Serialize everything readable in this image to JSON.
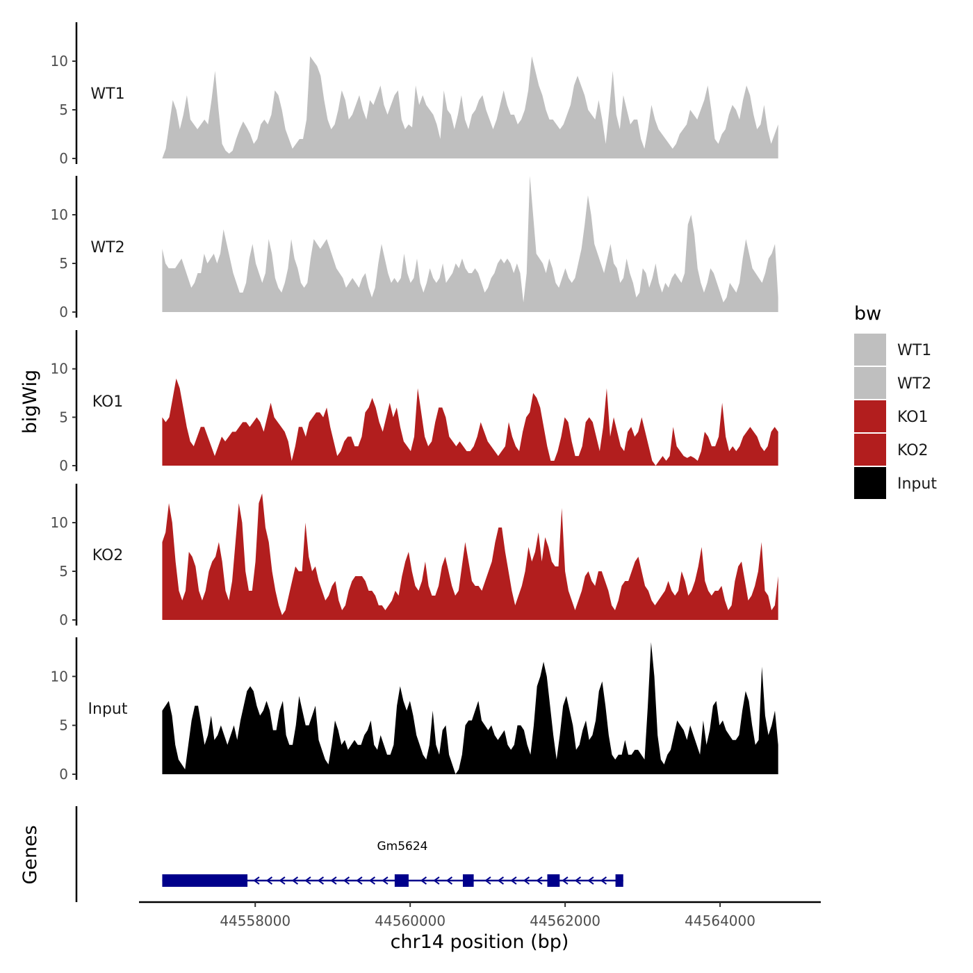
{
  "chart_data": {
    "type": "area",
    "chromosome": "chr14",
    "xlabel": "chr14 position (bp)",
    "ylabel": "bigWig",
    "genes_label": "Genes",
    "xlim": [
      44556500,
      44565300
    ],
    "x_ticks": [
      44558000,
      44560000,
      44562000,
      44564000
    ],
    "x_tick_labels": [
      "44558000",
      "44560000",
      "44562000",
      "44564000"
    ],
    "ylim": [
      0,
      14
    ],
    "y_ticks": [
      0,
      5,
      10
    ],
    "y_tick_labels": [
      "0",
      "5",
      "10"
    ],
    "legend": {
      "title": "bw",
      "entries": [
        {
          "label": "WT1",
          "color": "#bfbfbf"
        },
        {
          "label": "WT2",
          "color": "#bfbfbf"
        },
        {
          "label": "KO1",
          "color": "#b21e1e"
        },
        {
          "label": "KO2",
          "color": "#b21e1e"
        },
        {
          "label": "Input",
          "color": "#000000"
        }
      ]
    },
    "series": [
      {
        "name": "WT1",
        "color": "#bfbfbf",
        "x_start": 44556800,
        "x_end": 44564750,
        "values": [
          0,
          1,
          3.5,
          6,
          5,
          3,
          4.5,
          6.5,
          4,
          3.5,
          3,
          3.5,
          4,
          3.5,
          6,
          9,
          5,
          1.5,
          0.8,
          0.5,
          0.8,
          2,
          3,
          3.8,
          3.2,
          2.5,
          1.5,
          2,
          3.5,
          4,
          3.5,
          4.5,
          7,
          6.5,
          5,
          3,
          2,
          1,
          1.5,
          2,
          2,
          4,
          10.5,
          10,
          9.5,
          8.5,
          6,
          4,
          3,
          3.5,
          5,
          7,
          6,
          4,
          4.5,
          5.5,
          6.5,
          5,
          4,
          6,
          5.5,
          6.5,
          7.5,
          5.5,
          4.5,
          5.5,
          6.5,
          7,
          4,
          3,
          3.5,
          3.2,
          7.5,
          5.5,
          6.5,
          5.5,
          5,
          4.5,
          3.5,
          2,
          7,
          5,
          4.5,
          3,
          4.5,
          6.5,
          4,
          3,
          4.5,
          5,
          6,
          6.5,
          5,
          4,
          3,
          4,
          5.5,
          7,
          5.5,
          4.5,
          4.5,
          3.5,
          4,
          5,
          7,
          10.5,
          9,
          7.5,
          6.5,
          5,
          4,
          4,
          3.5,
          3,
          3.5,
          4.5,
          5.5,
          7.5,
          8.5,
          7.5,
          6.5,
          5,
          4.5,
          4,
          6,
          4,
          1.5,
          5,
          9,
          4.5,
          3,
          6.5,
          5,
          3.5,
          4,
          4,
          2,
          1,
          3,
          5.5,
          4,
          3,
          2.5,
          2,
          1.5,
          1,
          1.5,
          2.5,
          3,
          3.5,
          5,
          4.5,
          4,
          5,
          6,
          7.5,
          5,
          2,
          1.5,
          2.5,
          3,
          4.5,
          5.5,
          5,
          4,
          6,
          7.5,
          6.5,
          4.5,
          3,
          3.5,
          5.5,
          3,
          1.5,
          2.5,
          3.5
        ]
      },
      {
        "name": "WT2",
        "color": "#bfbfbf",
        "x_start": 44556800,
        "x_end": 44564750,
        "values": [
          6.5,
          5,
          4.5,
          4.5,
          4.5,
          5,
          5.5,
          4.5,
          3.5,
          2.5,
          3,
          4,
          4,
          6,
          5,
          5.5,
          6,
          5,
          6,
          8.5,
          7,
          5.5,
          4,
          3,
          2,
          2,
          3,
          5.5,
          7,
          5,
          4,
          3,
          4,
          7.5,
          6,
          3.5,
          2.5,
          2,
          3,
          4.5,
          7.5,
          5.5,
          4.5,
          3,
          2.5,
          3,
          5.5,
          7.5,
          7,
          6.5,
          7,
          7.5,
          6.5,
          5.5,
          4.5,
          4,
          3.5,
          2.5,
          3,
          3.5,
          3,
          2.5,
          3.5,
          4,
          2.5,
          1.5,
          2.5,
          5,
          7,
          5.5,
          4,
          3,
          3.5,
          3,
          3.5,
          6,
          4,
          3,
          3.5,
          5.5,
          3,
          2,
          3,
          4.5,
          3.5,
          3,
          3.5,
          5,
          3,
          3.5,
          4,
          5,
          4.5,
          5.5,
          4.5,
          4,
          4,
          4.5,
          4,
          3,
          2,
          2.5,
          3.5,
          4,
          5,
          5.5,
          5,
          5.5,
          5,
          4,
          5,
          4,
          1,
          4,
          14,
          10,
          6,
          5.5,
          5,
          4,
          5.5,
          4.5,
          3,
          2.5,
          3.5,
          4.5,
          3.5,
          3,
          3.5,
          5,
          6.5,
          9,
          12,
          10,
          7,
          6,
          5,
          4,
          5.5,
          7,
          5,
          4.5,
          3,
          3.5,
          5.5,
          4,
          3,
          1.5,
          2,
          4.5,
          4,
          2.5,
          3.5,
          5,
          3,
          2,
          3,
          2.5,
          3.5,
          4,
          3.5,
          3,
          4,
          9,
          10,
          8,
          4.5,
          3,
          2,
          3,
          4.5,
          4,
          3,
          2,
          1,
          1.5,
          3,
          2.5,
          2,
          3,
          5.5,
          7.5,
          6,
          4.5,
          4,
          3.5,
          3,
          4,
          5.5,
          6,
          7,
          1.5
        ]
      },
      {
        "name": "KO1",
        "color": "#b21e1e",
        "x_start": 44556800,
        "x_end": 44564750,
        "values": [
          5,
          4.5,
          5,
          7,
          9,
          8,
          6,
          4,
          2.5,
          2,
          3,
          4,
          4,
          3,
          2,
          1,
          2,
          3,
          2.5,
          3,
          3.5,
          3.5,
          4,
          4.5,
          4.5,
          4,
          4.5,
          5,
          4.5,
          3.5,
          5,
          6.5,
          5,
          4.5,
          4,
          3.5,
          2.5,
          0.5,
          2,
          4,
          4,
          3,
          4.5,
          5,
          5.5,
          5.5,
          5,
          6,
          4,
          2.5,
          1,
          1.5,
          2.5,
          3,
          3,
          2,
          2,
          3,
          5.5,
          6,
          7,
          6,
          4.5,
          3.5,
          5,
          6.5,
          5,
          6,
          4,
          2.5,
          2,
          1.5,
          3,
          8,
          5.5,
          3,
          2,
          2.5,
          4.5,
          6,
          6,
          5,
          3,
          2.5,
          2,
          2.5,
          2,
          1.5,
          1.5,
          2,
          3,
          4.5,
          3.5,
          2.5,
          2,
          1.5,
          1,
          1.5,
          2,
          4.5,
          3,
          2,
          1.5,
          3.5,
          5,
          5.5,
          7.5,
          7,
          6,
          4,
          2,
          0.5,
          0.5,
          1.5,
          3,
          5,
          4.5,
          2.5,
          1,
          1,
          2,
          4.5,
          5,
          4.5,
          3,
          1.5,
          4,
          8,
          3,
          5,
          3.5,
          2,
          1.5,
          3.5,
          4,
          3,
          3.5,
          5,
          3.5,
          2,
          0.5,
          0,
          0.5,
          1,
          0.5,
          1,
          4,
          2,
          1.5,
          1,
          0.8,
          1,
          0.8,
          0.5,
          1.5,
          3.5,
          3,
          2,
          2,
          3,
          6.5,
          3,
          1.5,
          2,
          1.5,
          2,
          3,
          3.5,
          4,
          3.5,
          3,
          2,
          1.5,
          2,
          3.5,
          4,
          3.5
        ]
      },
      {
        "name": "KO2",
        "color": "#b21e1e",
        "x_start": 44556800,
        "x_end": 44564750,
        "values": [
          8,
          9,
          12,
          10,
          6,
          3,
          2,
          3,
          7,
          6.5,
          5.5,
          3,
          2,
          3,
          5,
          6,
          6.5,
          8,
          6,
          3,
          2,
          4,
          8,
          12,
          10,
          5,
          3,
          3,
          6,
          12,
          13,
          9.5,
          8,
          5,
          3,
          1.5,
          0.5,
          1,
          2.5,
          4,
          5.5,
          5,
          5,
          10,
          6.5,
          5,
          5.5,
          4,
          3,
          2,
          2.5,
          3.5,
          4,
          2,
          1,
          1.5,
          3,
          4,
          4.5,
          4.5,
          4.5,
          4,
          3,
          3,
          2.5,
          1.5,
          1.5,
          1,
          1.5,
          2,
          3,
          2.5,
          4.5,
          6,
          7,
          5,
          3.5,
          3,
          4,
          6,
          3.5,
          2.5,
          2.5,
          3.5,
          5.5,
          6.5,
          5,
          3.5,
          2.5,
          3,
          5.5,
          8,
          6,
          4,
          3.5,
          3.5,
          3,
          4,
          5,
          6,
          8,
          9.5,
          9.5,
          7,
          5,
          3,
          1.5,
          2.5,
          3.5,
          5,
          7.5,
          6,
          7,
          9,
          6,
          8.5,
          7.5,
          6,
          5.5,
          5.5,
          11.5,
          5,
          3,
          2,
          1,
          2,
          3,
          4.5,
          5,
          4,
          3.5,
          5,
          5,
          4,
          3,
          1.5,
          1,
          2,
          3.5,
          4,
          4,
          5,
          6,
          6.5,
          5,
          3.5,
          3,
          2,
          1.5,
          2,
          2.5,
          3,
          4,
          3,
          2.5,
          3,
          5,
          4,
          2.5,
          3,
          4,
          5.5,
          7.5,
          4,
          3,
          2.5,
          3,
          3,
          3.5,
          2,
          1,
          1.5,
          4,
          5.5,
          6,
          4,
          2,
          2.5,
          3.5,
          5,
          8,
          3,
          2.5,
          1,
          1.5,
          4.5
        ]
      },
      {
        "name": "Input",
        "color": "#000000",
        "x_start": 44556800,
        "x_end": 44564750,
        "values": [
          6.5,
          7,
          7.5,
          6,
          3,
          1.5,
          1,
          0.5,
          3,
          5.5,
          7,
          7,
          5,
          3,
          4,
          6,
          3.5,
          4,
          5,
          4,
          3,
          4,
          5,
          3.5,
          5.5,
          7,
          8.5,
          9,
          8.5,
          7,
          6,
          6.5,
          7.5,
          6.5,
          4.5,
          4.5,
          6.5,
          7.5,
          4,
          3,
          3,
          5,
          8,
          6.5,
          5,
          5,
          6,
          7,
          3.5,
          2.5,
          1.5,
          1,
          3,
          5.5,
          4.5,
          3,
          3.5,
          2.5,
          3,
          3.5,
          3,
          3,
          4,
          4.5,
          5.5,
          3,
          2.5,
          4,
          3,
          2,
          2,
          3,
          7,
          9,
          7.5,
          6.5,
          7.5,
          6,
          4,
          3,
          2,
          1.5,
          3,
          6.5,
          3,
          2,
          4.5,
          5,
          2,
          1,
          0,
          0.5,
          2,
          5,
          5.5,
          5.5,
          6.5,
          7.5,
          5.5,
          5,
          4.5,
          5,
          4,
          3.5,
          4,
          4.5,
          3,
          2.5,
          3,
          5,
          5,
          4.5,
          3,
          2,
          5,
          9,
          10,
          11.5,
          10,
          7,
          4,
          1.5,
          4,
          7,
          8,
          6.5,
          5,
          2.5,
          3,
          4.5,
          5.5,
          3.5,
          4,
          5.5,
          8.5,
          9.5,
          7,
          4,
          2,
          1.5,
          2,
          2,
          3.5,
          2,
          2,
          2.5,
          2.5,
          2,
          1.5,
          7,
          13.5,
          10,
          4,
          1.5,
          1,
          2,
          2.5,
          4,
          5.5,
          5,
          4.5,
          3.5,
          5,
          4,
          3,
          2,
          5.5,
          3,
          4.5,
          7,
          7.5,
          5,
          5.5,
          4.5,
          4,
          3.5,
          3.5,
          4,
          6.5,
          8.5,
          7.5,
          5,
          3,
          3.5,
          11,
          6,
          4,
          5,
          6.5,
          3
        ]
      }
    ],
    "genes": [
      {
        "name": "Gm5624",
        "strand": "-",
        "start": 44556800,
        "end": 44562750,
        "exons": [
          [
            44556800,
            44557900
          ],
          [
            44559800,
            44559980
          ],
          [
            44560680,
            44560820
          ],
          [
            44561770,
            44561930
          ],
          [
            44562650,
            44562750
          ]
        ],
        "color": "#00008b"
      }
    ]
  }
}
